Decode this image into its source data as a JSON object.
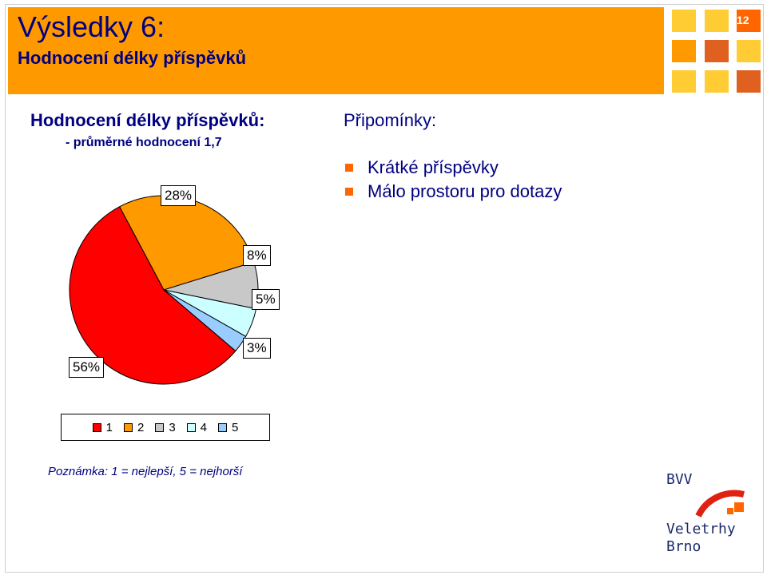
{
  "header": {
    "title": "Výsledky 6:",
    "subtitle": "Hodnocení délky příspěvků",
    "slide_number": "12",
    "squares_colors": [
      "#ff9900",
      "#ff6600",
      "#ffcc00"
    ]
  },
  "left": {
    "heading": "Hodnocení délky příspěvků:",
    "sub": "- průměrné hodnocení 1,7"
  },
  "right": {
    "heading": "Připomínky:",
    "bullets": [
      "Krátké příspěvky",
      "Málo prostoru pro dotazy"
    ]
  },
  "chart_data": {
    "type": "pie",
    "categories": [
      "1",
      "2",
      "3",
      "4",
      "5"
    ],
    "values": [
      56,
      28,
      8,
      5,
      3
    ],
    "labels": [
      "56%",
      "28%",
      "8%",
      "5%",
      "3%"
    ],
    "colors": [
      "#ff0000",
      "#ff9900",
      "#c8c8c8",
      "#ccffff",
      "#99ccff"
    ],
    "legend_position": "bottom"
  },
  "note": "Poznámka: 1 = nejlepší, 5 = nejhorší",
  "logo": {
    "line1": "BVV",
    "line2": "Veletrhy",
    "line3": "Brno"
  }
}
